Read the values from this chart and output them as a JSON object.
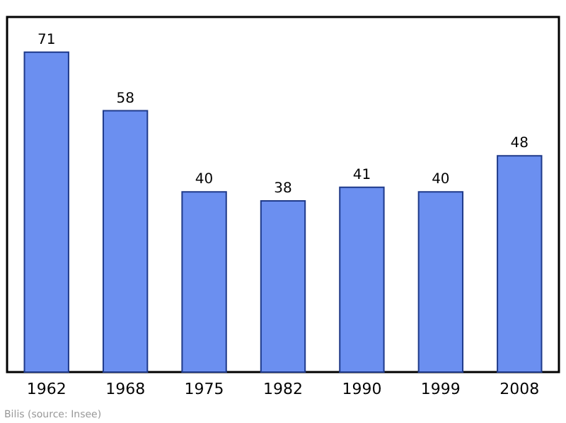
{
  "chart_data": {
    "type": "bar",
    "categories": [
      "1962",
      "1968",
      "1975",
      "1982",
      "1990",
      "1999",
      "2008"
    ],
    "values": [
      71,
      58,
      40,
      38,
      41,
      40,
      48
    ],
    "color": "#6b8ff0",
    "data_labels": true,
    "annotations": [
      "Bilis    (source: Insee)"
    ]
  }
}
